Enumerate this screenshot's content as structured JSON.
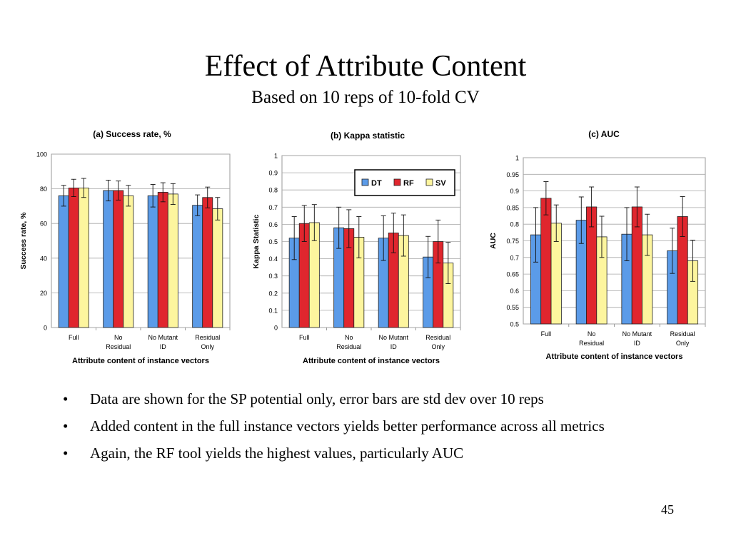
{
  "slide": {
    "title": "Effect of Attribute Content",
    "subtitle": "Based on 10 reps of 10-fold CV",
    "bullets": [
      "Data are shown for the SP potential only, error bars are std dev over 10 reps",
      "Added content in the full instance vectors yields better performance across all metrics",
      "Again, the RF tool yields the highest values, particularly AUC"
    ],
    "bullet_glyph": "•",
    "page_number": "45"
  },
  "colors": {
    "DT": "#5b9be8",
    "RF": "#e0262e",
    "SV": "#fdf59e"
  },
  "chart_data": [
    {
      "type": "bar",
      "title": "(a) Success rate, %",
      "xlabel": "Attribute content of instance vectors",
      "ylabel": "Success rate, %",
      "categories": [
        [
          "Full"
        ],
        [
          "No",
          "Residual"
        ],
        [
          "No Mutant",
          "ID"
        ],
        [
          "Residual",
          "Only"
        ]
      ],
      "ylim": [
        0,
        100
      ],
      "yticks": [
        0,
        20,
        40,
        60,
        80,
        100
      ],
      "ytick_labels": [
        "0",
        "20",
        "40",
        "60",
        "80",
        "100"
      ],
      "grid": true,
      "series": [
        {
          "name": "DT",
          "values": [
            76,
            79,
            76,
            70.5
          ],
          "err": [
            6,
            6,
            6.5,
            6
          ]
        },
        {
          "name": "RF",
          "values": [
            80.5,
            79,
            78,
            75
          ],
          "err": [
            5,
            5.5,
            5.5,
            6
          ]
        },
        {
          "name": "SV",
          "values": [
            80.5,
            76,
            77,
            68.5
          ],
          "err": [
            5.5,
            6,
            6,
            6.5
          ]
        }
      ]
    },
    {
      "type": "bar",
      "title": "(b) Kappa statistic",
      "xlabel": "Attribute content of instance vectors",
      "ylabel": "Kappa Statistic",
      "categories": [
        [
          "Full"
        ],
        [
          "No",
          "Residual"
        ],
        [
          "No Mutant",
          "ID"
        ],
        [
          "Residual",
          "Only"
        ]
      ],
      "ylim": [
        0,
        1
      ],
      "yticks": [
        0,
        0.1,
        0.2,
        0.3,
        0.4,
        0.5,
        0.6,
        0.7,
        0.8,
        0.9,
        1
      ],
      "ytick_labels": [
        "0",
        "0.1",
        "0.2",
        "0.3",
        "0.4",
        "0.5",
        "0.6",
        "0.7",
        "0.8",
        "0.9",
        "1"
      ],
      "grid": true,
      "legend": "top-right",
      "series": [
        {
          "name": "DT",
          "values": [
            0.52,
            0.58,
            0.52,
            0.41
          ],
          "err": [
            0.125,
            0.12,
            0.13,
            0.12
          ]
        },
        {
          "name": "RF",
          "values": [
            0.605,
            0.575,
            0.55,
            0.5
          ],
          "err": [
            0.105,
            0.11,
            0.115,
            0.125
          ]
        },
        {
          "name": "SV",
          "values": [
            0.61,
            0.525,
            0.535,
            0.375
          ],
          "err": [
            0.105,
            0.12,
            0.12,
            0.12
          ]
        }
      ]
    },
    {
      "type": "bar",
      "title": "(c) AUC",
      "xlabel": "Attribute content of instance vectors",
      "ylabel": "AUC",
      "categories": [
        [
          "Full"
        ],
        [
          "No",
          "Residual"
        ],
        [
          "No Mutant",
          "ID"
        ],
        [
          "Residual",
          "Only"
        ]
      ],
      "ylim": [
        0.5,
        1
      ],
      "yticks": [
        0.5,
        0.55,
        0.6,
        0.65,
        0.7,
        0.75,
        0.8,
        0.85,
        0.9,
        0.95,
        1
      ],
      "ytick_labels": [
        "0.5",
        "0.55",
        "0.6",
        "0.65",
        "0.7",
        "0.75",
        "0.8",
        "0.85",
        "0.9",
        "0.95",
        "1"
      ],
      "grid": true,
      "series": [
        {
          "name": "DT",
          "values": [
            0.768,
            0.812,
            0.77,
            0.72
          ],
          "err": [
            0.082,
            0.07,
            0.08,
            0.068
          ]
        },
        {
          "name": "RF",
          "values": [
            0.878,
            0.852,
            0.852,
            0.823
          ],
          "err": [
            0.05,
            0.06,
            0.06,
            0.06
          ]
        },
        {
          "name": "SV",
          "values": [
            0.803,
            0.762,
            0.768,
            0.69
          ],
          "err": [
            0.055,
            0.062,
            0.062,
            0.062
          ]
        }
      ]
    }
  ]
}
